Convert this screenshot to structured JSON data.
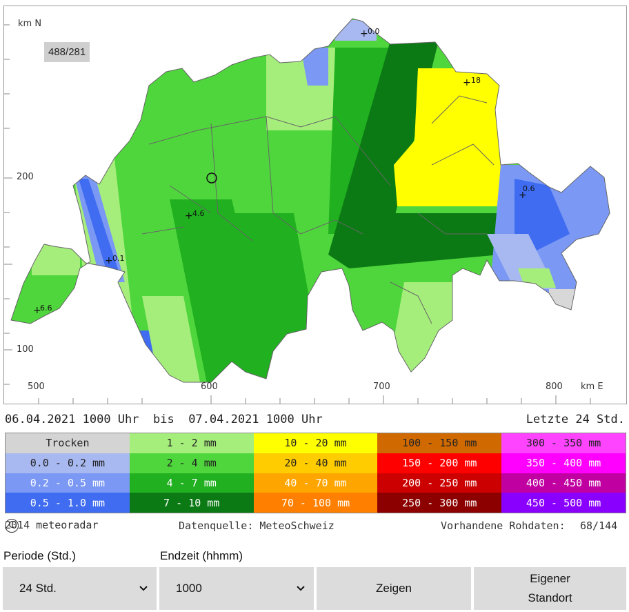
{
  "map": {
    "axis_top_left": "km N",
    "axis_bottom_right": "km E",
    "y_ticks": [
      "200",
      "100"
    ],
    "x_ticks": [
      "500",
      "600",
      "700",
      "800"
    ],
    "coord_readout": "488/281",
    "stations": [
      {
        "label": "0.0"
      },
      {
        "label": "18"
      },
      {
        "label": "0.6"
      },
      {
        "label": "4.6"
      },
      {
        "label": "0.1"
      },
      {
        "label": "6.6"
      }
    ],
    "colors": {
      "trocken": "#d8d8d8",
      "p0_02": "#a8b8f0",
      "p02_05": "#7a98f4",
      "p05_1": "#3f6cf0",
      "p1_2": "#a6ee7c",
      "p2_4": "#4fd63c",
      "p4_7": "#20b020",
      "p7_10": "#0c8a18",
      "p10_20": "#ffff00"
    }
  },
  "period": {
    "from_date": "06.04.2021",
    "from_time": "1000 Uhr",
    "separator": "bis",
    "to_date": "07.04.2021",
    "to_time": "1000 Uhr",
    "last": "Letzte 24 Std."
  },
  "legend": [
    {
      "label": "Trocken",
      "bg": "#d4d4d4",
      "fg": "#222222"
    },
    {
      "label": "1 - 2 mm",
      "bg": "#a6ee7c",
      "fg": "#222222"
    },
    {
      "label": "10 - 20 mm",
      "bg": "#ffff00",
      "fg": "#222222"
    },
    {
      "label": "100 - 150 mm",
      "bg": "#d06a00",
      "fg": "#222222"
    },
    {
      "label": "300 - 350 mm",
      "bg": "#ff44ff",
      "fg": "#222222"
    },
    {
      "label": "0.0 - 0.2 mm",
      "bg": "#a8b8f0",
      "fg": "#222222"
    },
    {
      "label": "2 - 4 mm",
      "bg": "#4fd63c",
      "fg": "#222222"
    },
    {
      "label": "20 - 40 mm",
      "bg": "#ffcc00",
      "fg": "#222222"
    },
    {
      "label": "150 - 200 mm",
      "bg": "#ff0000",
      "fg": "#ffffff"
    },
    {
      "label": "350 - 400 mm",
      "bg": "#ff00ff",
      "fg": "#ffffff"
    },
    {
      "label": "0.2 - 0.5 mm",
      "bg": "#7a98f4",
      "fg": "#ffffff"
    },
    {
      "label": "4 - 7 mm",
      "bg": "#20b020",
      "fg": "#ffffff"
    },
    {
      "label": "40 - 70 mm",
      "bg": "#ffa500",
      "fg": "#ffffff"
    },
    {
      "label": "200 - 250 mm",
      "bg": "#cc0000",
      "fg": "#ffffff"
    },
    {
      "label": "400 - 450 mm",
      "bg": "#c000a0",
      "fg": "#ffffff"
    },
    {
      "label": "0.5 - 1.0 mm",
      "bg": "#3f6cf0",
      "fg": "#ffffff"
    },
    {
      "label": "7 - 10 mm",
      "bg": "#0c7a14",
      "fg": "#ffffff"
    },
    {
      "label": "70 - 100 mm",
      "bg": "#ff8000",
      "fg": "#ffffff"
    },
    {
      "label": "250 - 300 mm",
      "bg": "#8c0000",
      "fg": "#ffffff"
    },
    {
      "label": "450 - 500 mm",
      "bg": "#8a00ff",
      "fg": "#ffffff"
    }
  ],
  "footer": {
    "copyright_year": "2014 meteoradar",
    "source": "Datenquelle: MeteoSchweiz",
    "raw_data_label": "Vorhandene Rohdaten:",
    "raw_data_value": "68/144"
  },
  "controls": {
    "period_label": "Periode (Std.)",
    "period_value": "24 Std.",
    "endtime_label": "Endzeit (hhmm)",
    "endtime_value": "1000",
    "show_button": "Zeigen",
    "own_location_line1": "Eigener",
    "own_location_line2": "Standort"
  }
}
